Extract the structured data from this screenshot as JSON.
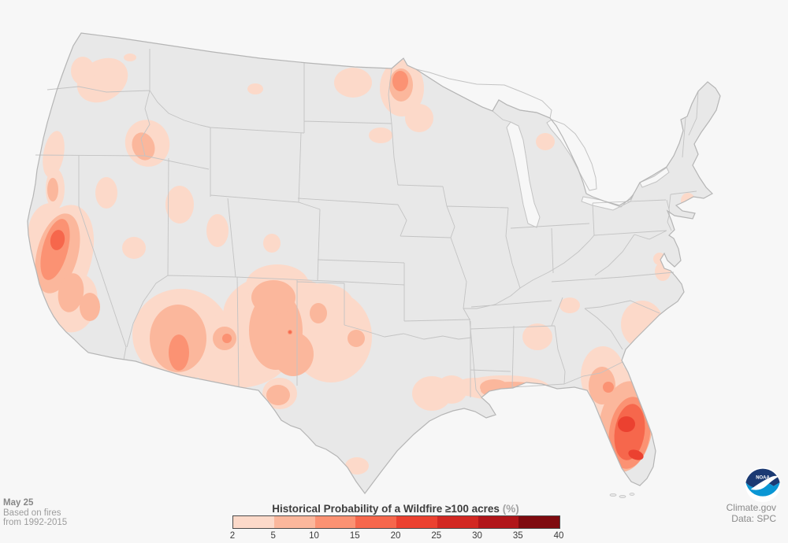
{
  "annotations": {
    "date_label": "May 25",
    "basis_line1": "Based on fires",
    "basis_line2": "from 1992-2015"
  },
  "credits": {
    "site": "Climate.gov",
    "data_source": "Data: SPC",
    "logo_text": "NOAA"
  },
  "chart_data": {
    "type": "heatmap",
    "subtype": "filled-contour-probability-map",
    "region": "Contiguous United States",
    "title": "Historical Probability of a Wildfire ≥100 acres",
    "title_unit": "(%)",
    "date": "May 25",
    "basis": "Based on fires from 1992-2015",
    "source": "Climate.gov / SPC",
    "legend": {
      "position": "bottom-center",
      "ticks": [
        2,
        5,
        10,
        15,
        20,
        25,
        30,
        35,
        40
      ],
      "band_ranges": [
        "2-5",
        "5-10",
        "10-15",
        "15-20",
        "20-25",
        "25-30",
        "30-35",
        "35-40"
      ],
      "band_colors": [
        "#fcd9c9",
        "#fbb79c",
        "#fb9273",
        "#f6674c",
        "#eb4130",
        "#d22822",
        "#b1161a",
        "#7f0b10"
      ]
    },
    "map_colors": {
      "land": "#e8e8e8",
      "state_border": "#c3c3c3",
      "coast_border": "#b5b5b5",
      "water": "#f7f7f7"
    },
    "hotspots": [
      {
        "region": "Central/Northern California (Sierra foothills)",
        "peak_probability_pct": "15-20"
      },
      {
        "region": "Southern California",
        "peak_probability_pct": "5-10"
      },
      {
        "region": "Northwest California coastal range",
        "peak_probability_pct": "5-10"
      },
      {
        "region": "Central Washington / North Oregon",
        "peak_probability_pct": "2-5"
      },
      {
        "region": "Southwest Idaho",
        "peak_probability_pct": "5-10"
      },
      {
        "region": "Northwest Nevada",
        "peak_probability_pct": "2-5"
      },
      {
        "region": "Southern Nevada",
        "peak_probability_pct": "2-5"
      },
      {
        "region": "Central and Southeast Utah",
        "peak_probability_pct": "2-5"
      },
      {
        "region": "Southwest Montana",
        "peak_probability_pct": "2-5"
      },
      {
        "region": "Western North Dakota",
        "peak_probability_pct": "2-5"
      },
      {
        "region": "Northern Minnesota",
        "peak_probability_pct": "10-15"
      },
      {
        "region": "Northern Colorado",
        "peak_probability_pct": "2-5"
      },
      {
        "region": "South-central Arizona",
        "peak_probability_pct": "10-15"
      },
      {
        "region": "Eastern Arizona (Mogollon Rim)",
        "peak_probability_pct": "10-15"
      },
      {
        "region": "Central New Mexico",
        "peak_probability_pct": "5-10"
      },
      {
        "region": "Central New Mexico local maximum",
        "peak_probability_pct": "15-20"
      },
      {
        "region": "Texas Panhandle",
        "peak_probability_pct": "5-10"
      },
      {
        "region": "Big Bend, Texas",
        "peak_probability_pct": "5-10"
      },
      {
        "region": "North Texas / Red River",
        "peak_probability_pct": "5-10"
      },
      {
        "region": "South Texas",
        "peak_probability_pct": "2-5"
      },
      {
        "region": "Upper Texas coast / SW Louisiana",
        "peak_probability_pct": "2-5"
      },
      {
        "region": "Central Gulf Coast (MS/AL/FL panhandle)",
        "peak_probability_pct": "5-10"
      },
      {
        "region": "Central Georgia",
        "peak_probability_pct": "2-5"
      },
      {
        "region": "Coastal Carolinas",
        "peak_probability_pct": "2-5"
      },
      {
        "region": "Southeast Georgia / Northeast Florida",
        "peak_probability_pct": "10-15"
      },
      {
        "region": "Central Florida peninsula",
        "peak_probability_pct": "20-25"
      },
      {
        "region": "Southwest Florida",
        "peak_probability_pct": "20-25"
      },
      {
        "region": "Northern Lower Michigan",
        "peak_probability_pct": "2-5"
      },
      {
        "region": "New Jersey Pine Barrens",
        "peak_probability_pct": "2-5"
      }
    ]
  }
}
